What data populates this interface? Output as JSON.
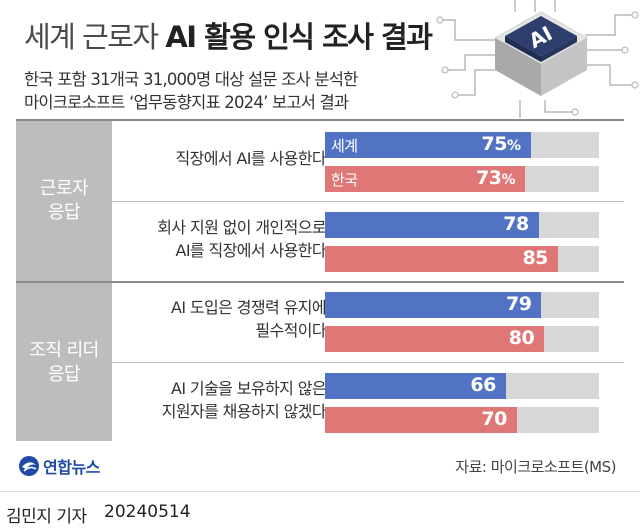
{
  "header": {
    "title_light": "세계 근로자",
    "title_bold": "AI 활용 인식 조사 결과",
    "subtitle_line1": "한국 포함 31개국 31,000명 대상 설문 조사 분석한",
    "subtitle_line2": "마이크로소프트 ‘업무동향지표 2024’ 보고서 결과",
    "chip_label": "AI"
  },
  "groups": [
    {
      "label_line1": "근로자",
      "label_line2": "응답"
    },
    {
      "label_line1": "조직 리더",
      "label_line2": "응답"
    }
  ],
  "chart_data": {
    "type": "bar",
    "orientation": "horizontal",
    "unit": "%",
    "xlim": [
      0,
      100
    ],
    "series": [
      {
        "name": "세계",
        "color": "#5273c4",
        "values": [
          75,
          78,
          79,
          66
        ]
      },
      {
        "name": "한국",
        "color": "#e07777",
        "values": [
          73,
          85,
          80,
          70
        ]
      }
    ],
    "categories": [
      {
        "group": "근로자 응답",
        "line1": "직장에서 AI를 사용한다",
        "line2": ""
      },
      {
        "group": "근로자 응답",
        "line1": "회사 지원 없이 개인적으로",
        "line2": "AI를 직장에서 사용한다"
      },
      {
        "group": "조직 리더 응답",
        "line1": "AI 도입은 경쟁력 유지에",
        "line2": "필수적이다"
      },
      {
        "group": "조직 리더 응답",
        "line1": "AI 기술을 보유하지 않은",
        "line2": "지원자를 채용하지 않겠다"
      }
    ]
  },
  "footer": {
    "logo_text": "연합뉴스",
    "source": "자료: 마이크로소프트(MS)"
  },
  "credit": {
    "name": "김민지 기자",
    "date": "20240514"
  }
}
